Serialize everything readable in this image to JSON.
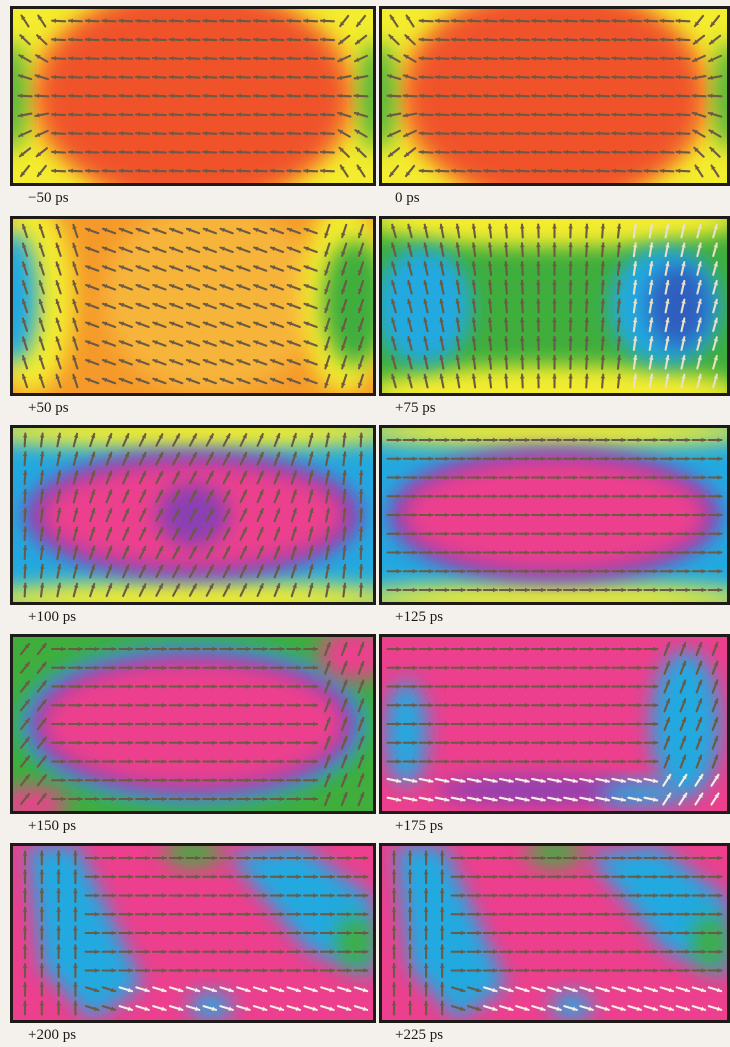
{
  "figure": {
    "panels": [
      {
        "label": "−50 ps",
        "state": "uniform-horizontal"
      },
      {
        "label": "0 ps",
        "state": "uniform-horizontal"
      },
      {
        "label": "+50 ps",
        "state": "tilt-onset"
      },
      {
        "label": "+75 ps",
        "state": "vertical-rotation"
      },
      {
        "label": "+100 ps",
        "state": "vertical-reversal"
      },
      {
        "label": "+125 ps",
        "state": "reversed-horizontal"
      },
      {
        "label": "+150 ps",
        "state": "reversed-domain"
      },
      {
        "label": "+175 ps",
        "state": "reversed-domain-relaxing"
      },
      {
        "label": "+200 ps",
        "state": "multidomain"
      },
      {
        "label": "+225 ps",
        "state": "multidomain"
      }
    ],
    "colors": {
      "red": "#f0522a",
      "orange": "#f59a2a",
      "yellow": "#f4ec2e",
      "green": "#3fae3c",
      "cyan": "#22a9e0",
      "blue": "#2f5fbf",
      "purple": "#8a3fb2",
      "magenta": "#ec3f8e",
      "arrow": "#6b5a45",
      "frame": "#1d1a17"
    }
  }
}
